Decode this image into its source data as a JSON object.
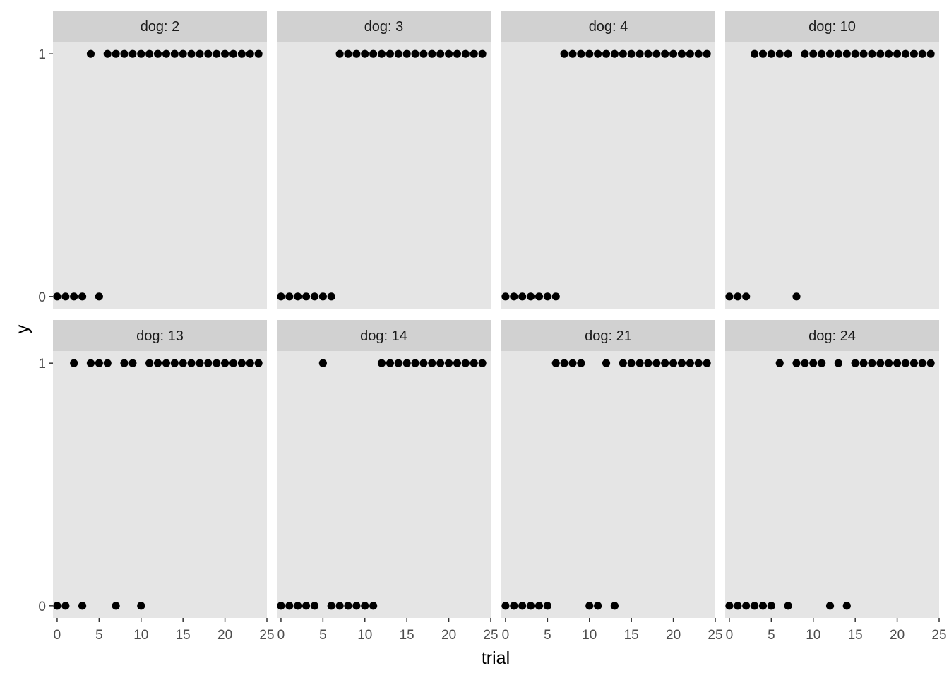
{
  "chart_data": {
    "type": "scatter",
    "facet_label_prefix": "dog: ",
    "xlabel": "trial",
    "ylabel": "y",
    "xlim": [
      -0.5,
      25
    ],
    "ylim": [
      -0.05,
      1.05
    ],
    "x_ticks": [
      0,
      5,
      10,
      15,
      20,
      25
    ],
    "y_ticks": [
      0,
      1
    ],
    "grid": false,
    "colors": {
      "panel_bg": "#e5e5e5",
      "strip_bg": "#d1d1d1",
      "point": "#000000",
      "tick": "#333333"
    },
    "facets": [
      {
        "dog": "2",
        "y": [
          0,
          0,
          0,
          0,
          1,
          0,
          1,
          1,
          1,
          1,
          1,
          1,
          1,
          1,
          1,
          1,
          1,
          1,
          1,
          1,
          1,
          1,
          1,
          1,
          1
        ]
      },
      {
        "dog": "3",
        "y": [
          0,
          0,
          0,
          0,
          0,
          0,
          0,
          1,
          1,
          1,
          1,
          1,
          1,
          1,
          1,
          1,
          1,
          1,
          1,
          1,
          1,
          1,
          1,
          1,
          1
        ]
      },
      {
        "dog": "4",
        "y": [
          0,
          0,
          0,
          0,
          0,
          0,
          0,
          1,
          1,
          1,
          1,
          1,
          1,
          1,
          1,
          1,
          1,
          1,
          1,
          1,
          1,
          1,
          1,
          1,
          1
        ]
      },
      {
        "dog": "10",
        "y": [
          0,
          0,
          0,
          1,
          1,
          1,
          1,
          1,
          0,
          1,
          1,
          1,
          1,
          1,
          1,
          1,
          1,
          1,
          1,
          1,
          1,
          1,
          1,
          1,
          1
        ]
      },
      {
        "dog": "13",
        "y": [
          0,
          0,
          1,
          0,
          1,
          1,
          1,
          0,
          1,
          1,
          0,
          1,
          1,
          1,
          1,
          1,
          1,
          1,
          1,
          1,
          1,
          1,
          1,
          1,
          1
        ]
      },
      {
        "dog": "14",
        "y": [
          0,
          0,
          0,
          0,
          0,
          1,
          0,
          0,
          0,
          0,
          0,
          0,
          1,
          1,
          1,
          1,
          1,
          1,
          1,
          1,
          1,
          1,
          1,
          1,
          1
        ]
      },
      {
        "dog": "21",
        "y": [
          0,
          0,
          0,
          0,
          0,
          0,
          1,
          1,
          1,
          1,
          0,
          0,
          1,
          0,
          1,
          1,
          1,
          1,
          1,
          1,
          1,
          1,
          1,
          1,
          1
        ]
      },
      {
        "dog": "24",
        "y": [
          0,
          0,
          0,
          0,
          0,
          0,
          1,
          0,
          1,
          1,
          1,
          1,
          0,
          1,
          0,
          1,
          1,
          1,
          1,
          1,
          1,
          1,
          1,
          1,
          1
        ]
      }
    ]
  }
}
